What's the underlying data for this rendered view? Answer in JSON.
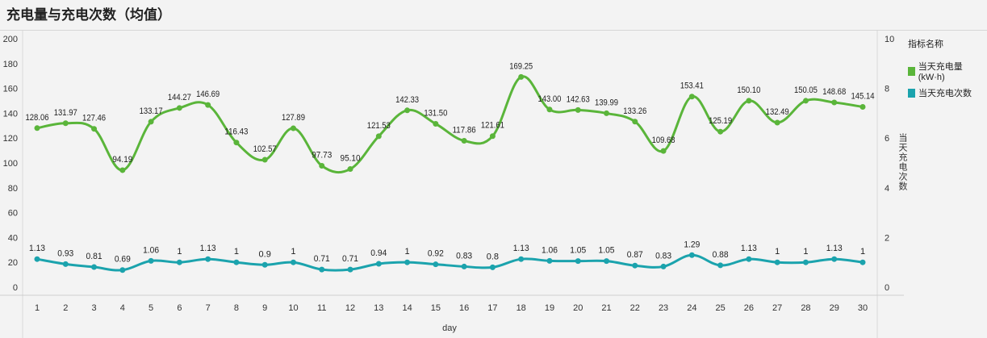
{
  "chart_data": {
    "type": "line",
    "title": "充电量与充电次数（均值）",
    "xlabel": "day",
    "ylabel_left": "",
    "ylabel_right": "当天充电次数",
    "x": [
      1,
      2,
      3,
      4,
      5,
      6,
      7,
      8,
      9,
      10,
      11,
      12,
      13,
      14,
      15,
      16,
      17,
      18,
      19,
      20,
      21,
      22,
      23,
      24,
      25,
      26,
      27,
      28,
      29,
      30
    ],
    "y_left_ticks": [
      0,
      20,
      40,
      60,
      80,
      100,
      120,
      140,
      160,
      180,
      200
    ],
    "y_left_range": [
      0,
      200
    ],
    "y_right_ticks": [
      0,
      2,
      4,
      6,
      8,
      10
    ],
    "y_right_range": [
      0,
      10
    ],
    "legend_title": "指标名称",
    "legend_position": "right",
    "series": [
      {
        "name": "当天充电量(kW·h)",
        "axis": "left",
        "color": "#5ab53a",
        "values": [
          128.06,
          131.97,
          127.46,
          94.19,
          133.17,
          144.27,
          146.69,
          116.43,
          102.57,
          127.89,
          97.73,
          95.1,
          121.53,
          142.33,
          131.5,
          117.86,
          121.61,
          169.25,
          143.0,
          142.63,
          139.99,
          133.26,
          109.68,
          153.41,
          125.19,
          150.1,
          132.49,
          150.05,
          148.68,
          145.14
        ],
        "labels": [
          "128.06",
          "131.97",
          "127.46",
          "94.19",
          "133.17",
          "144.27",
          "146.69",
          "116.43",
          "102.57",
          "127.89",
          "97.73",
          "95.10",
          "121.53",
          "142.33",
          "131.50",
          "117.86",
          "121.61",
          "169.25",
          "143.00",
          "142.63",
          "139.99",
          "133.26",
          "109.68",
          "153.41",
          "125.19",
          "150.10",
          "132.49",
          "150.05",
          "148.68",
          "145.14"
        ]
      },
      {
        "name": "当天充电次数",
        "axis": "right",
        "color": "#1ba3ad",
        "values": [
          1.13,
          0.93,
          0.81,
          0.69,
          1.06,
          1,
          1.13,
          1,
          0.9,
          1,
          0.71,
          0.71,
          0.94,
          1,
          0.92,
          0.83,
          0.8,
          1.13,
          1.06,
          1.05,
          1.05,
          0.87,
          0.83,
          1.29,
          0.88,
          1.13,
          1,
          1,
          1.13,
          1
        ],
        "labels": [
          "1.13",
          "0.93",
          "0.81",
          "0.69",
          "1.06",
          "1",
          "1.13",
          "1",
          "0.9",
          "1",
          "0.71",
          "0.71",
          "0.94",
          "1",
          "0.92",
          "0.83",
          "0.8",
          "1.13",
          "1.06",
          "1.05",
          "1.05",
          "0.87",
          "0.83",
          "1.29",
          "0.88",
          "1.13",
          "1",
          "1",
          "1.13",
          "1"
        ]
      }
    ]
  }
}
